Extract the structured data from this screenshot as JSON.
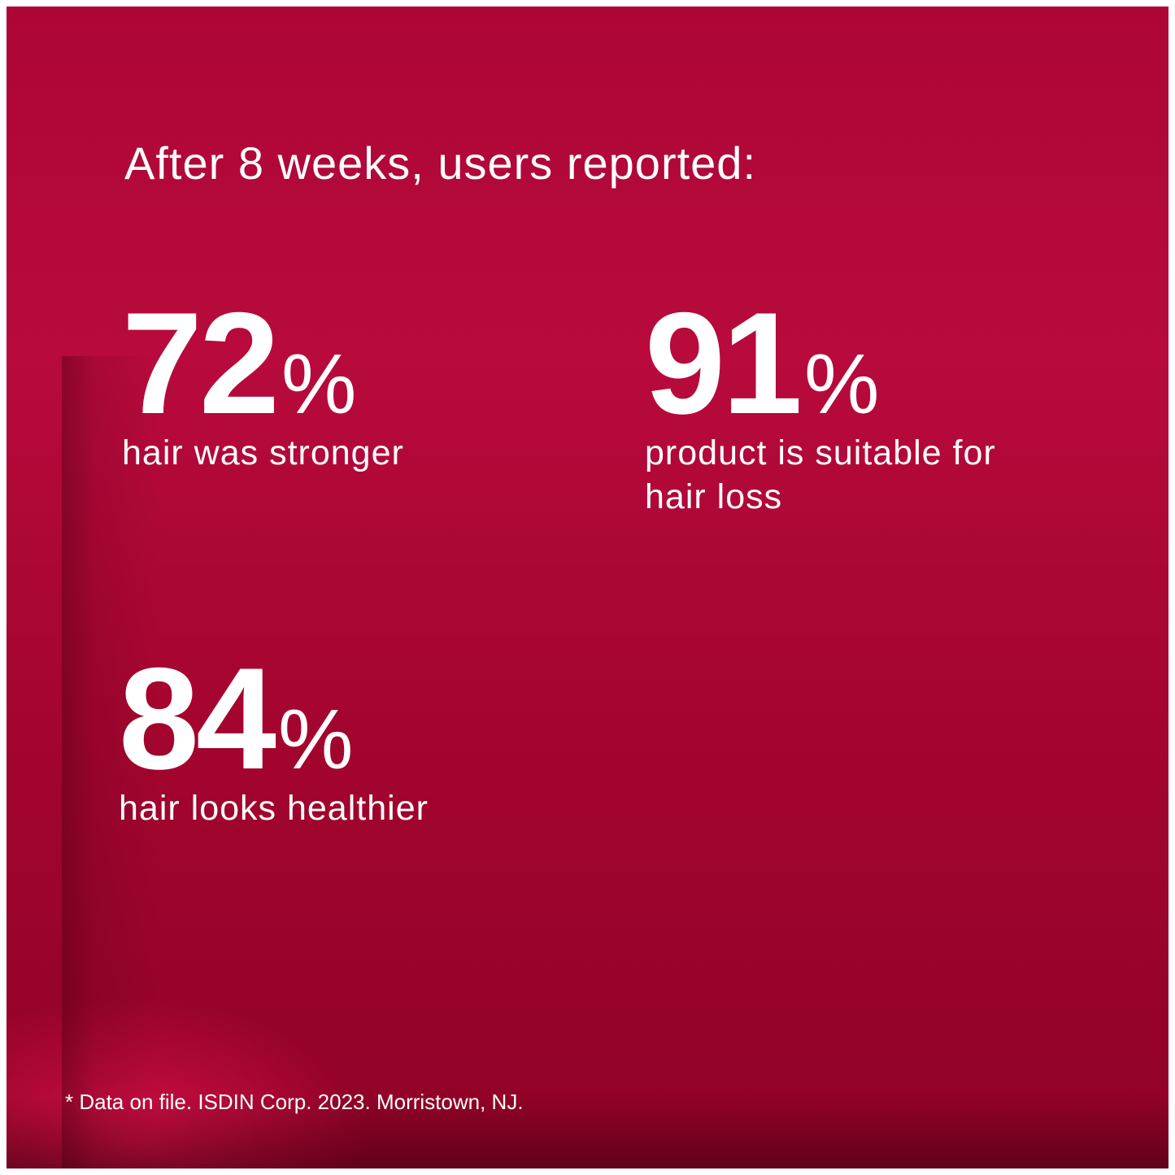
{
  "header": {
    "title": "After 8 weeks, users reported:"
  },
  "stats": [
    {
      "value": 72,
      "unit": "%",
      "label": "hair was stronger"
    },
    {
      "value": 91,
      "unit": "%",
      "label": "product is suitable for hair loss"
    },
    {
      "value": 84,
      "unit": "%",
      "label": "hair looks healthier"
    }
  ],
  "footnote": "* Data on file. ISDIN Corp. 2023. Morristown, NJ."
}
